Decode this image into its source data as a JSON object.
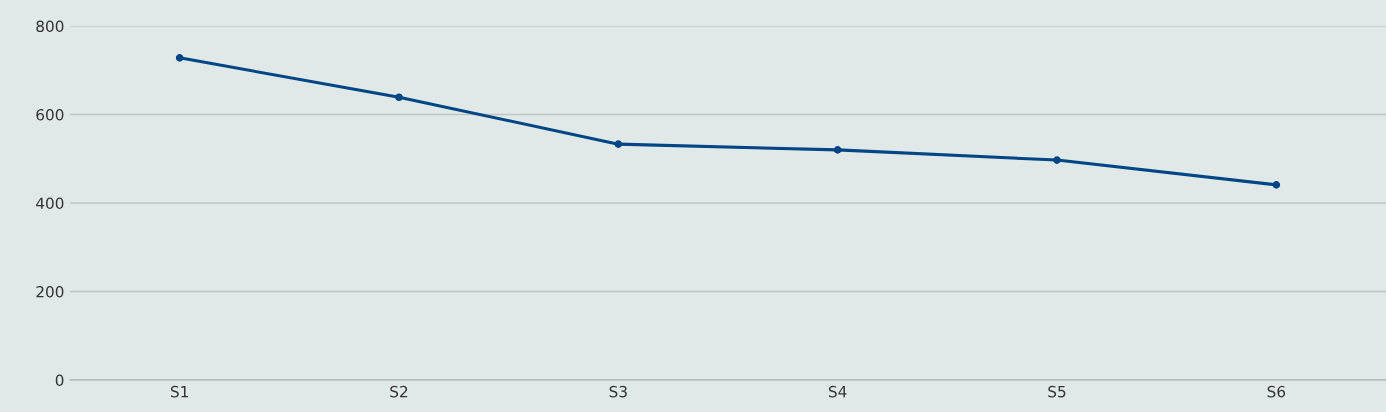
{
  "chart_data": {
    "type": "line",
    "categories": [
      "S1",
      "S2",
      "S3",
      "S4",
      "S5",
      "S6"
    ],
    "series": [
      {
        "color": "#004586",
        "values": [
          728,
          639,
          533,
          520,
          497,
          441
        ]
      }
    ],
    "ylim": [
      0,
      800
    ],
    "yticks": [
      0,
      200,
      400,
      600,
      800
    ],
    "grid": "y",
    "marker": "circle",
    "line_style": "solid"
  }
}
